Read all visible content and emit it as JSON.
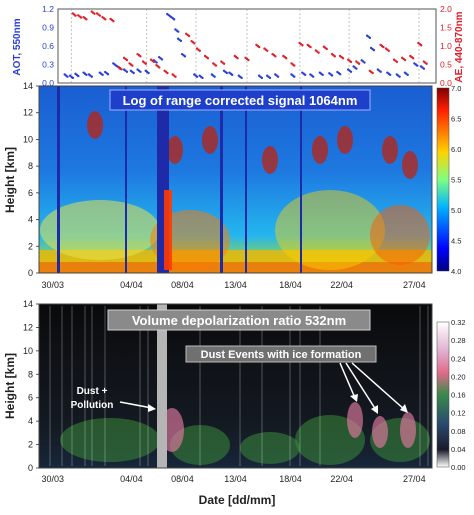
{
  "chart_data": [
    {
      "type": "scatter",
      "panel": "aot-ae-timeseries",
      "xlabel": "",
      "ylabel_left": "AOT, 550nm",
      "ylabel_right": "AE, 440-870nm",
      "ylim_left": [
        0,
        1.2
      ],
      "ylim_right": [
        0,
        2.0
      ],
      "yticks_left": [
        "0.0",
        "0.3",
        "0.6",
        "0.9",
        "1.2"
      ],
      "yticks_right": [
        "0.0",
        "0.5",
        "1.0",
        "1.5",
        "2.0"
      ],
      "xticks": [
        "30/03",
        "04/04",
        "08/04",
        "13/04",
        "18/04",
        "22/04",
        "27/04"
      ],
      "xlim_days": [
        0,
        28
      ],
      "grid": "vertical dashed at ticks",
      "series": [
        {
          "axis": "left",
          "color": "#2a3fd6",
          "points": [
            {
              "x": 0.6,
              "y": 0.12
            },
            {
              "x": 1.0,
              "y": 0.1
            },
            {
              "x": 1.4,
              "y": 0.13
            },
            {
              "x": 2.0,
              "y": 0.15
            },
            {
              "x": 2.4,
              "y": 0.12
            },
            {
              "x": 3.2,
              "y": 0.15
            },
            {
              "x": 3.6,
              "y": 0.16
            },
            {
              "x": 4.2,
              "y": 0.3
            },
            {
              "x": 4.5,
              "y": 0.25
            },
            {
              "x": 5.0,
              "y": 0.2
            },
            {
              "x": 5.5,
              "y": 0.18
            },
            {
              "x": 6.0,
              "y": 0.2
            },
            {
              "x": 6.6,
              "y": 0.18
            },
            {
              "x": 7.2,
              "y": 0.35
            },
            {
              "x": 7.6,
              "y": 0.4
            },
            {
              "x": 8.2,
              "y": 1.1
            },
            {
              "x": 8.5,
              "y": 1.05
            },
            {
              "x": 8.8,
              "y": 0.85
            },
            {
              "x": 9.0,
              "y": 0.7
            },
            {
              "x": 9.3,
              "y": 0.45
            },
            {
              "x": 10.2,
              "y": 0.12
            },
            {
              "x": 10.6,
              "y": 0.1
            },
            {
              "x": 11.5,
              "y": 0.12
            },
            {
              "x": 12.4,
              "y": 0.18
            },
            {
              "x": 12.8,
              "y": 0.15
            },
            {
              "x": 13.5,
              "y": 0.1
            },
            {
              "x": 15.0,
              "y": 0.1
            },
            {
              "x": 15.6,
              "y": 0.1
            },
            {
              "x": 16.2,
              "y": 0.12
            },
            {
              "x": 17.4,
              "y": 0.12
            },
            {
              "x": 18.2,
              "y": 0.15
            },
            {
              "x": 18.8,
              "y": 0.12
            },
            {
              "x": 19.5,
              "y": 0.15
            },
            {
              "x": 20.2,
              "y": 0.14
            },
            {
              "x": 20.8,
              "y": 0.16
            },
            {
              "x": 21.6,
              "y": 0.2
            },
            {
              "x": 22.0,
              "y": 0.25
            },
            {
              "x": 22.6,
              "y": 0.35
            },
            {
              "x": 23.0,
              "y": 0.75
            },
            {
              "x": 23.3,
              "y": 0.55
            },
            {
              "x": 23.8,
              "y": 0.2
            },
            {
              "x": 24.5,
              "y": 0.15
            },
            {
              "x": 25.2,
              "y": 0.12
            },
            {
              "x": 25.8,
              "y": 0.15
            },
            {
              "x": 26.5,
              "y": 0.3
            },
            {
              "x": 27.0,
              "y": 0.25
            }
          ]
        },
        {
          "axis": "right",
          "color": "#e0202a",
          "points": [
            {
              "x": 1.2,
              "y": 1.85
            },
            {
              "x": 1.6,
              "y": 1.8
            },
            {
              "x": 2.0,
              "y": 1.75
            },
            {
              "x": 2.6,
              "y": 1.9
            },
            {
              "x": 3.0,
              "y": 1.85
            },
            {
              "x": 3.4,
              "y": 1.75
            },
            {
              "x": 4.0,
              "y": 1.7
            },
            {
              "x": 4.6,
              "y": 0.4
            },
            {
              "x": 5.0,
              "y": 0.65
            },
            {
              "x": 5.4,
              "y": 0.5
            },
            {
              "x": 6.0,
              "y": 0.75
            },
            {
              "x": 6.4,
              "y": 0.55
            },
            {
              "x": 7.0,
              "y": 0.6
            },
            {
              "x": 7.4,
              "y": 0.45
            },
            {
              "x": 8.0,
              "y": 0.3
            },
            {
              "x": 8.6,
              "y": 0.2
            },
            {
              "x": 9.6,
              "y": 1.3
            },
            {
              "x": 10.0,
              "y": 1.1
            },
            {
              "x": 10.4,
              "y": 0.9
            },
            {
              "x": 11.0,
              "y": 0.7
            },
            {
              "x": 11.6,
              "y": 0.5
            },
            {
              "x": 12.2,
              "y": 0.55
            },
            {
              "x": 13.2,
              "y": 0.7
            },
            {
              "x": 14.0,
              "y": 0.65
            },
            {
              "x": 14.8,
              "y": 1.0
            },
            {
              "x": 15.4,
              "y": 0.9
            },
            {
              "x": 16.0,
              "y": 0.75
            },
            {
              "x": 16.8,
              "y": 0.7
            },
            {
              "x": 17.4,
              "y": 0.5
            },
            {
              "x": 18.0,
              "y": 1.05
            },
            {
              "x": 18.6,
              "y": 1.0
            },
            {
              "x": 19.2,
              "y": 0.85
            },
            {
              "x": 19.8,
              "y": 0.95
            },
            {
              "x": 20.4,
              "y": 0.75
            },
            {
              "x": 21.0,
              "y": 0.7
            },
            {
              "x": 21.6,
              "y": 0.6
            },
            {
              "x": 22.2,
              "y": 0.55
            },
            {
              "x": 23.2,
              "y": 0.3
            },
            {
              "x": 24.0,
              "y": 1.0
            },
            {
              "x": 24.4,
              "y": 0.9
            },
            {
              "x": 25.0,
              "y": 0.6
            },
            {
              "x": 25.6,
              "y": 0.65
            },
            {
              "x": 26.2,
              "y": 0.7
            },
            {
              "x": 26.8,
              "y": 1.05
            },
            {
              "x": 27.2,
              "y": 0.55
            }
          ]
        }
      ]
    },
    {
      "type": "heatmap",
      "panel": "range-corrected-signal",
      "title": "Log of range corrected signal 1064nm",
      "ylabel": "Height [km]",
      "ylim": [
        0,
        14
      ],
      "yticks": [
        "0",
        "2",
        "4",
        "6",
        "8",
        "10",
        "12",
        "14"
      ],
      "xticks": [
        "30/03",
        "04/04",
        "08/04",
        "13/04",
        "18/04",
        "22/04",
        "27/04"
      ],
      "colorbar_ticks": [
        "4.0",
        "4.5",
        "5.0",
        "5.5",
        "6.0",
        "6.5",
        "7.0"
      ],
      "colorbar_range": [
        4.0,
        7.0
      ],
      "colormap": "jet"
    },
    {
      "type": "heatmap",
      "panel": "volume-depolarization",
      "title": "Volume depolarization ratio 532nm",
      "ylabel": "Height [km]",
      "xlabel": "Date [dd/mm]",
      "ylim": [
        0,
        14
      ],
      "yticks": [
        "0",
        "2",
        "4",
        "6",
        "8",
        "10",
        "12",
        "14"
      ],
      "xticks": [
        "30/03",
        "04/04",
        "08/04",
        "13/04",
        "18/04",
        "22/04",
        "27/04"
      ],
      "colorbar_ticks": [
        "0.00",
        "0.04",
        "0.08",
        "0.12",
        "0.16",
        "0.20",
        "0.24",
        "0.28",
        "0.32"
      ],
      "colorbar_range": [
        0,
        0.32
      ],
      "annotations": [
        "Dust + Pollution",
        "Dust Events with  ice formation"
      ]
    }
  ]
}
